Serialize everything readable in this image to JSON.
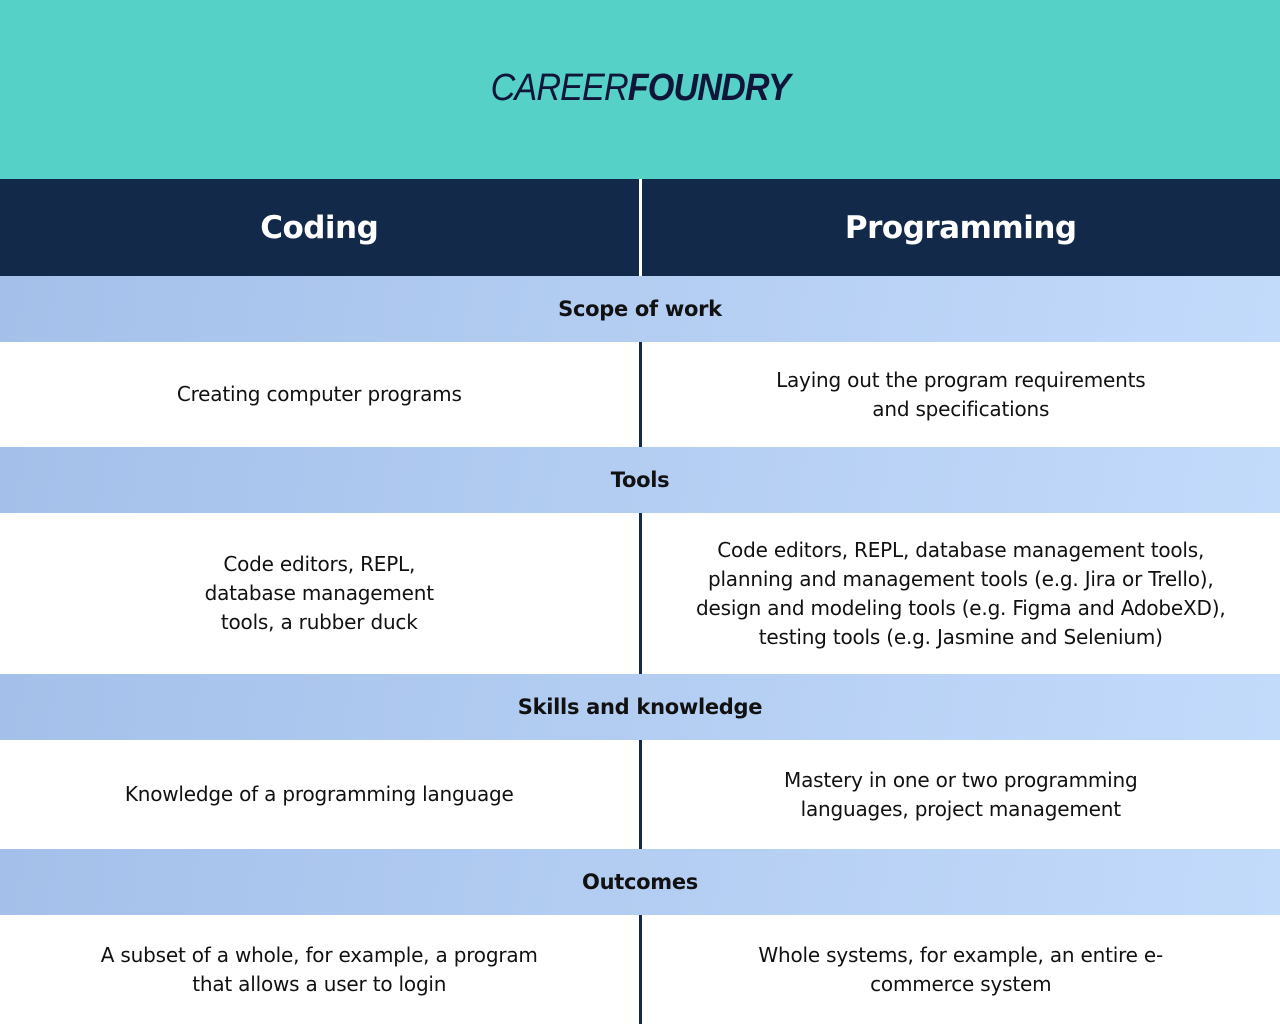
{
  "logo": {
    "text_light": "CAREER",
    "text_bold": "FOUNDRY"
  },
  "colors": {
    "teal": "#55d1c7",
    "navy": "#12294a",
    "band": "#b4cff3"
  },
  "header": {
    "left": "Coding",
    "right": "Programming"
  },
  "sections": [
    {
      "title": "Scope of work",
      "coding": "Creating computer programs",
      "programming": "Laying out the program requirements\nand specifications"
    },
    {
      "title": "Tools",
      "coding": "Code editors, REPL,\ndatabase management\ntools, a rubber duck",
      "programming": "Code editors, REPL, database management tools,\nplanning and management tools (e.g. Jira or Trello),\ndesign and modeling tools (e.g. Figma and AdobeXD),\ntesting tools (e.g. Jasmine and Selenium)"
    },
    {
      "title": "Skills and knowledge",
      "coding": "Knowledge of a programming language",
      "programming": "Mastery in one or two programming\nlanguages, project management"
    },
    {
      "title": "Outcomes",
      "coding": "A subset of a whole, for example, a program\nthat allows a user to login",
      "programming": "Whole systems, for example, an entire e-\ncommerce system"
    }
  ]
}
